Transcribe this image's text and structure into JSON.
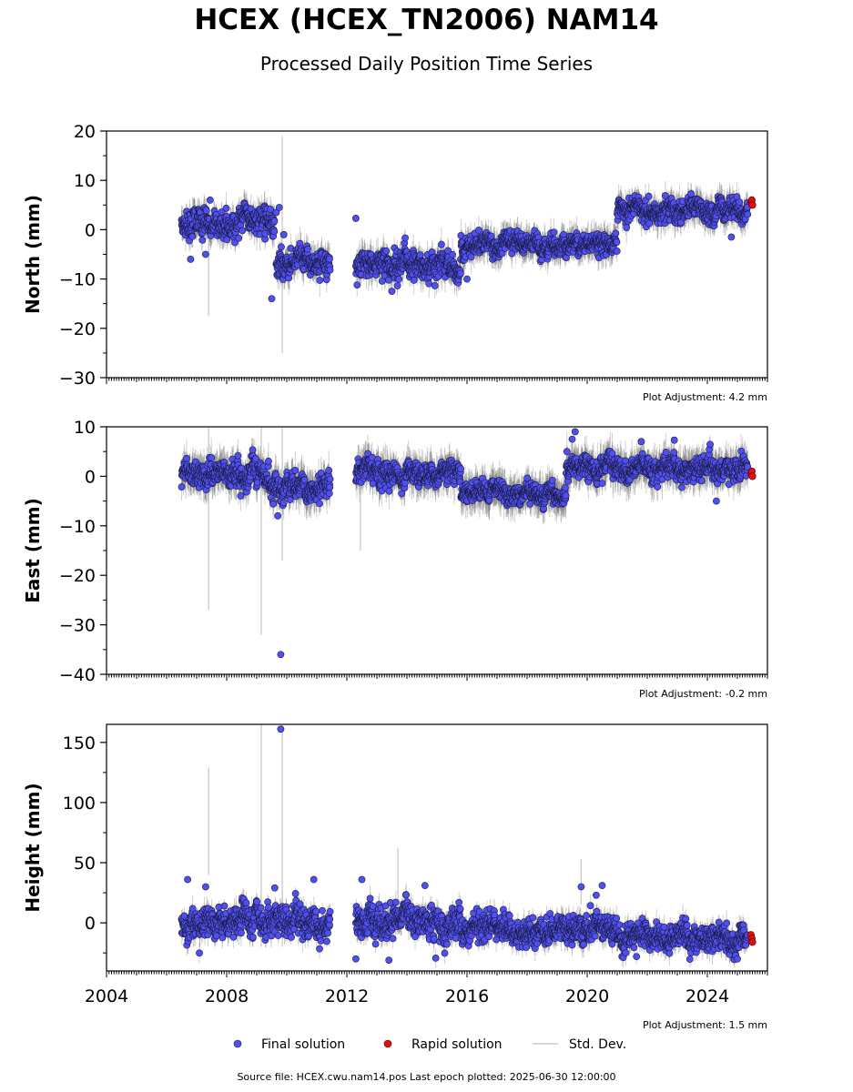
{
  "title": "HCEX (HCEX_TN2006) NAM14",
  "subtitle": "Processed Daily Position Time Series",
  "source": "Source file: HCEX.cwu.nam14.pos  Last epoch plotted: 2025-06-30 12:00:00",
  "legend": [
    {
      "label": "Final solution",
      "color": "#5050f0"
    },
    {
      "label": "Rapid solution",
      "color": "#e01010"
    },
    {
      "label": "Std. Dev.",
      "color": "#cccccc"
    }
  ],
  "chart_data": [
    {
      "type": "scatter",
      "component": "north",
      "ylabel": "North (mm)",
      "ylim": [
        -30,
        20
      ],
      "yticks": [
        20,
        10,
        0,
        -10,
        -20,
        -30
      ],
      "xlim": [
        2004,
        2026
      ],
      "adjustment": "Plot Adjustment: 4.2 mm",
      "segments": [
        {
          "x_start": 2006.5,
          "x_end": 2009.6,
          "y_mean": 1,
          "spread": 2.0,
          "err": 2.5
        },
        {
          "x_start": 2009.65,
          "x_end": 2011.45,
          "y_mean": -7,
          "spread": 1.8,
          "err": 2.5
        },
        {
          "x_start": 2012.3,
          "x_end": 2015.8,
          "y_mean": -7,
          "spread": 2.0,
          "err": 2.5
        },
        {
          "x_start": 2015.8,
          "x_end": 2021.0,
          "y_mean": -3,
          "spread": 1.5,
          "err": 2.5
        },
        {
          "x_start": 2021.0,
          "x_end": 2025.35,
          "y_mean": 4,
          "spread": 1.6,
          "err": 2.5
        }
      ],
      "outliers": [
        [
          2006.8,
          -6
        ],
        [
          2007.3,
          -5
        ],
        [
          2007.45,
          6
        ],
        [
          2009.5,
          -14
        ],
        [
          2009.65,
          3.5
        ],
        [
          2009.75,
          4.5
        ],
        [
          2009.9,
          -1
        ],
        [
          2012.3,
          2.3
        ],
        [
          2013.5,
          -12.5
        ],
        [
          2016.0,
          -10
        ],
        [
          2024.8,
          -1.5
        ]
      ],
      "rapid": [
        [
          2025.45,
          5.5
        ],
        [
          2025.48,
          6
        ],
        [
          2025.5,
          5
        ]
      ],
      "big_errors": [
        [
          2007.4,
          -17.5,
          4
        ],
        [
          2009.85,
          -25,
          19
        ]
      ]
    },
    {
      "type": "scatter",
      "component": "east",
      "ylabel": "East (mm)",
      "ylim": [
        -40,
        10
      ],
      "yticks": [
        10,
        0,
        -10,
        -20,
        -30,
        -40
      ],
      "xlim": [
        2004,
        2026
      ],
      "adjustment": "Plot Adjustment: -0.2 mm",
      "segments": [
        {
          "x_start": 2006.5,
          "x_end": 2009.4,
          "y_mean": 0.5,
          "spread": 1.8,
          "err": 3
        },
        {
          "x_start": 2009.4,
          "x_end": 2011.45,
          "y_mean": -2,
          "spread": 1.8,
          "err": 3
        },
        {
          "x_start": 2012.3,
          "x_end": 2015.8,
          "y_mean": 0.5,
          "spread": 1.8,
          "err": 3
        },
        {
          "x_start": 2015.8,
          "x_end": 2019.3,
          "y_mean": -3.5,
          "spread": 1.4,
          "err": 3
        },
        {
          "x_start": 2019.3,
          "x_end": 2025.35,
          "y_mean": 1.5,
          "spread": 1.6,
          "err": 3
        }
      ],
      "outliers": [
        [
          2009.8,
          -36
        ],
        [
          2009.7,
          -8
        ],
        [
          2019.6,
          9
        ],
        [
          2019.5,
          7.5
        ],
        [
          2021.8,
          7
        ],
        [
          2022.9,
          7.3
        ],
        [
          2024.3,
          -5
        ]
      ],
      "rapid": [
        [
          2025.45,
          0.5
        ],
        [
          2025.48,
          1
        ],
        [
          2025.5,
          0
        ]
      ],
      "big_errors": [
        [
          2007.4,
          -27,
          10
        ],
        [
          2009.15,
          -32,
          10
        ],
        [
          2009.85,
          -17,
          10
        ],
        [
          2012.45,
          -15,
          3
        ]
      ]
    },
    {
      "type": "scatter",
      "component": "height",
      "ylabel": "Height (mm)",
      "ylim": [
        -40,
        165
      ],
      "yticks": [
        150,
        100,
        50,
        0
      ],
      "xlim": [
        2004,
        2026
      ],
      "xticks": [
        2004,
        2008,
        2012,
        2016,
        2020,
        2024
      ],
      "adjustment": "Plot Adjustment: 1.5 mm",
      "segments": [
        {
          "x_start": 2006.5,
          "x_end": 2011.45,
          "y_mean": 0,
          "spread": 9,
          "err": 8
        },
        {
          "x_start": 2012.3,
          "x_end": 2015.8,
          "y_mean": 3,
          "spread": 10,
          "err": 8
        },
        {
          "x_start": 2015.8,
          "x_end": 2021.0,
          "y_mean": -5,
          "spread": 8,
          "err": 8
        },
        {
          "x_start": 2021.0,
          "x_end": 2025.35,
          "y_mean": -12,
          "spread": 8,
          "err": 8
        }
      ],
      "outliers": [
        [
          2006.7,
          36
        ],
        [
          2007.3,
          30
        ],
        [
          2009.6,
          29
        ],
        [
          2009.8,
          161
        ],
        [
          2010.9,
          36
        ],
        [
          2012.3,
          -30
        ],
        [
          2012.5,
          36
        ],
        [
          2013.4,
          -31
        ],
        [
          2014.6,
          31
        ],
        [
          2019.8,
          30
        ],
        [
          2020.5,
          31
        ],
        [
          2020.3,
          23
        ],
        [
          2025.0,
          -30
        ]
      ],
      "rapid": [
        [
          2025.45,
          -10
        ],
        [
          2025.48,
          -13
        ],
        [
          2025.5,
          -16
        ]
      ],
      "big_errors": [
        [
          2007.4,
          129,
          40
        ],
        [
          2009.15,
          165,
          -20
        ],
        [
          2009.85,
          165,
          -20
        ],
        [
          2013.7,
          62,
          20
        ],
        [
          2019.8,
          53,
          15
        ]
      ]
    }
  ]
}
